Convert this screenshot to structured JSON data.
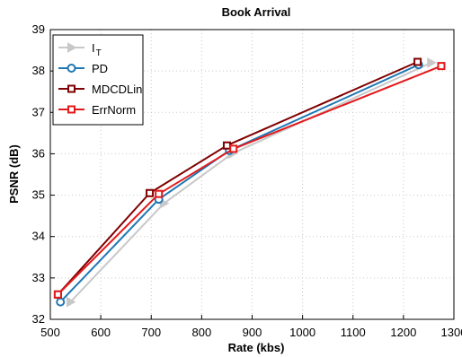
{
  "chart_data": {
    "type": "line",
    "title": "Book Arrival",
    "xlabel": "Rate (kbs)",
    "ylabel": "PSNR (dB)",
    "xlim": [
      500,
      1300
    ],
    "ylim": [
      32,
      39
    ],
    "xticks": [
      500,
      600,
      700,
      800,
      900,
      1000,
      1100,
      1200,
      1300
    ],
    "yticks": [
      32,
      33,
      34,
      35,
      36,
      37,
      38,
      39
    ],
    "grid": true,
    "legend_position": "top-left",
    "series": [
      {
        "name": "I_T",
        "name_main": "I",
        "name_sub": "T",
        "color": "#c8c8c8",
        "marker": "triangle-right",
        "x": [
          540,
          725,
          860,
          1255
        ],
        "y": [
          32.42,
          34.8,
          36.0,
          38.2
        ]
      },
      {
        "name": "PD",
        "name_main": "PD",
        "name_sub": "",
        "color": "#1f77b4",
        "marker": "circle",
        "x": [
          520,
          715,
          855,
          1230
        ],
        "y": [
          32.42,
          34.9,
          36.08,
          38.15
        ]
      },
      {
        "name": "MDCDLin",
        "name_main": "MDCDLin",
        "name_sub": "",
        "color": "#7f0000",
        "marker": "square",
        "x": [
          515,
          697,
          850,
          1228
        ],
        "y": [
          32.6,
          35.05,
          36.2,
          38.22
        ]
      },
      {
        "name": "ErrNorm",
        "name_main": "ErrNorm",
        "name_sub": "",
        "color": "#e31a1c",
        "marker": "square",
        "x": [
          515,
          715,
          863,
          1275
        ],
        "y": [
          32.6,
          35.03,
          36.12,
          38.12
        ]
      }
    ]
  }
}
